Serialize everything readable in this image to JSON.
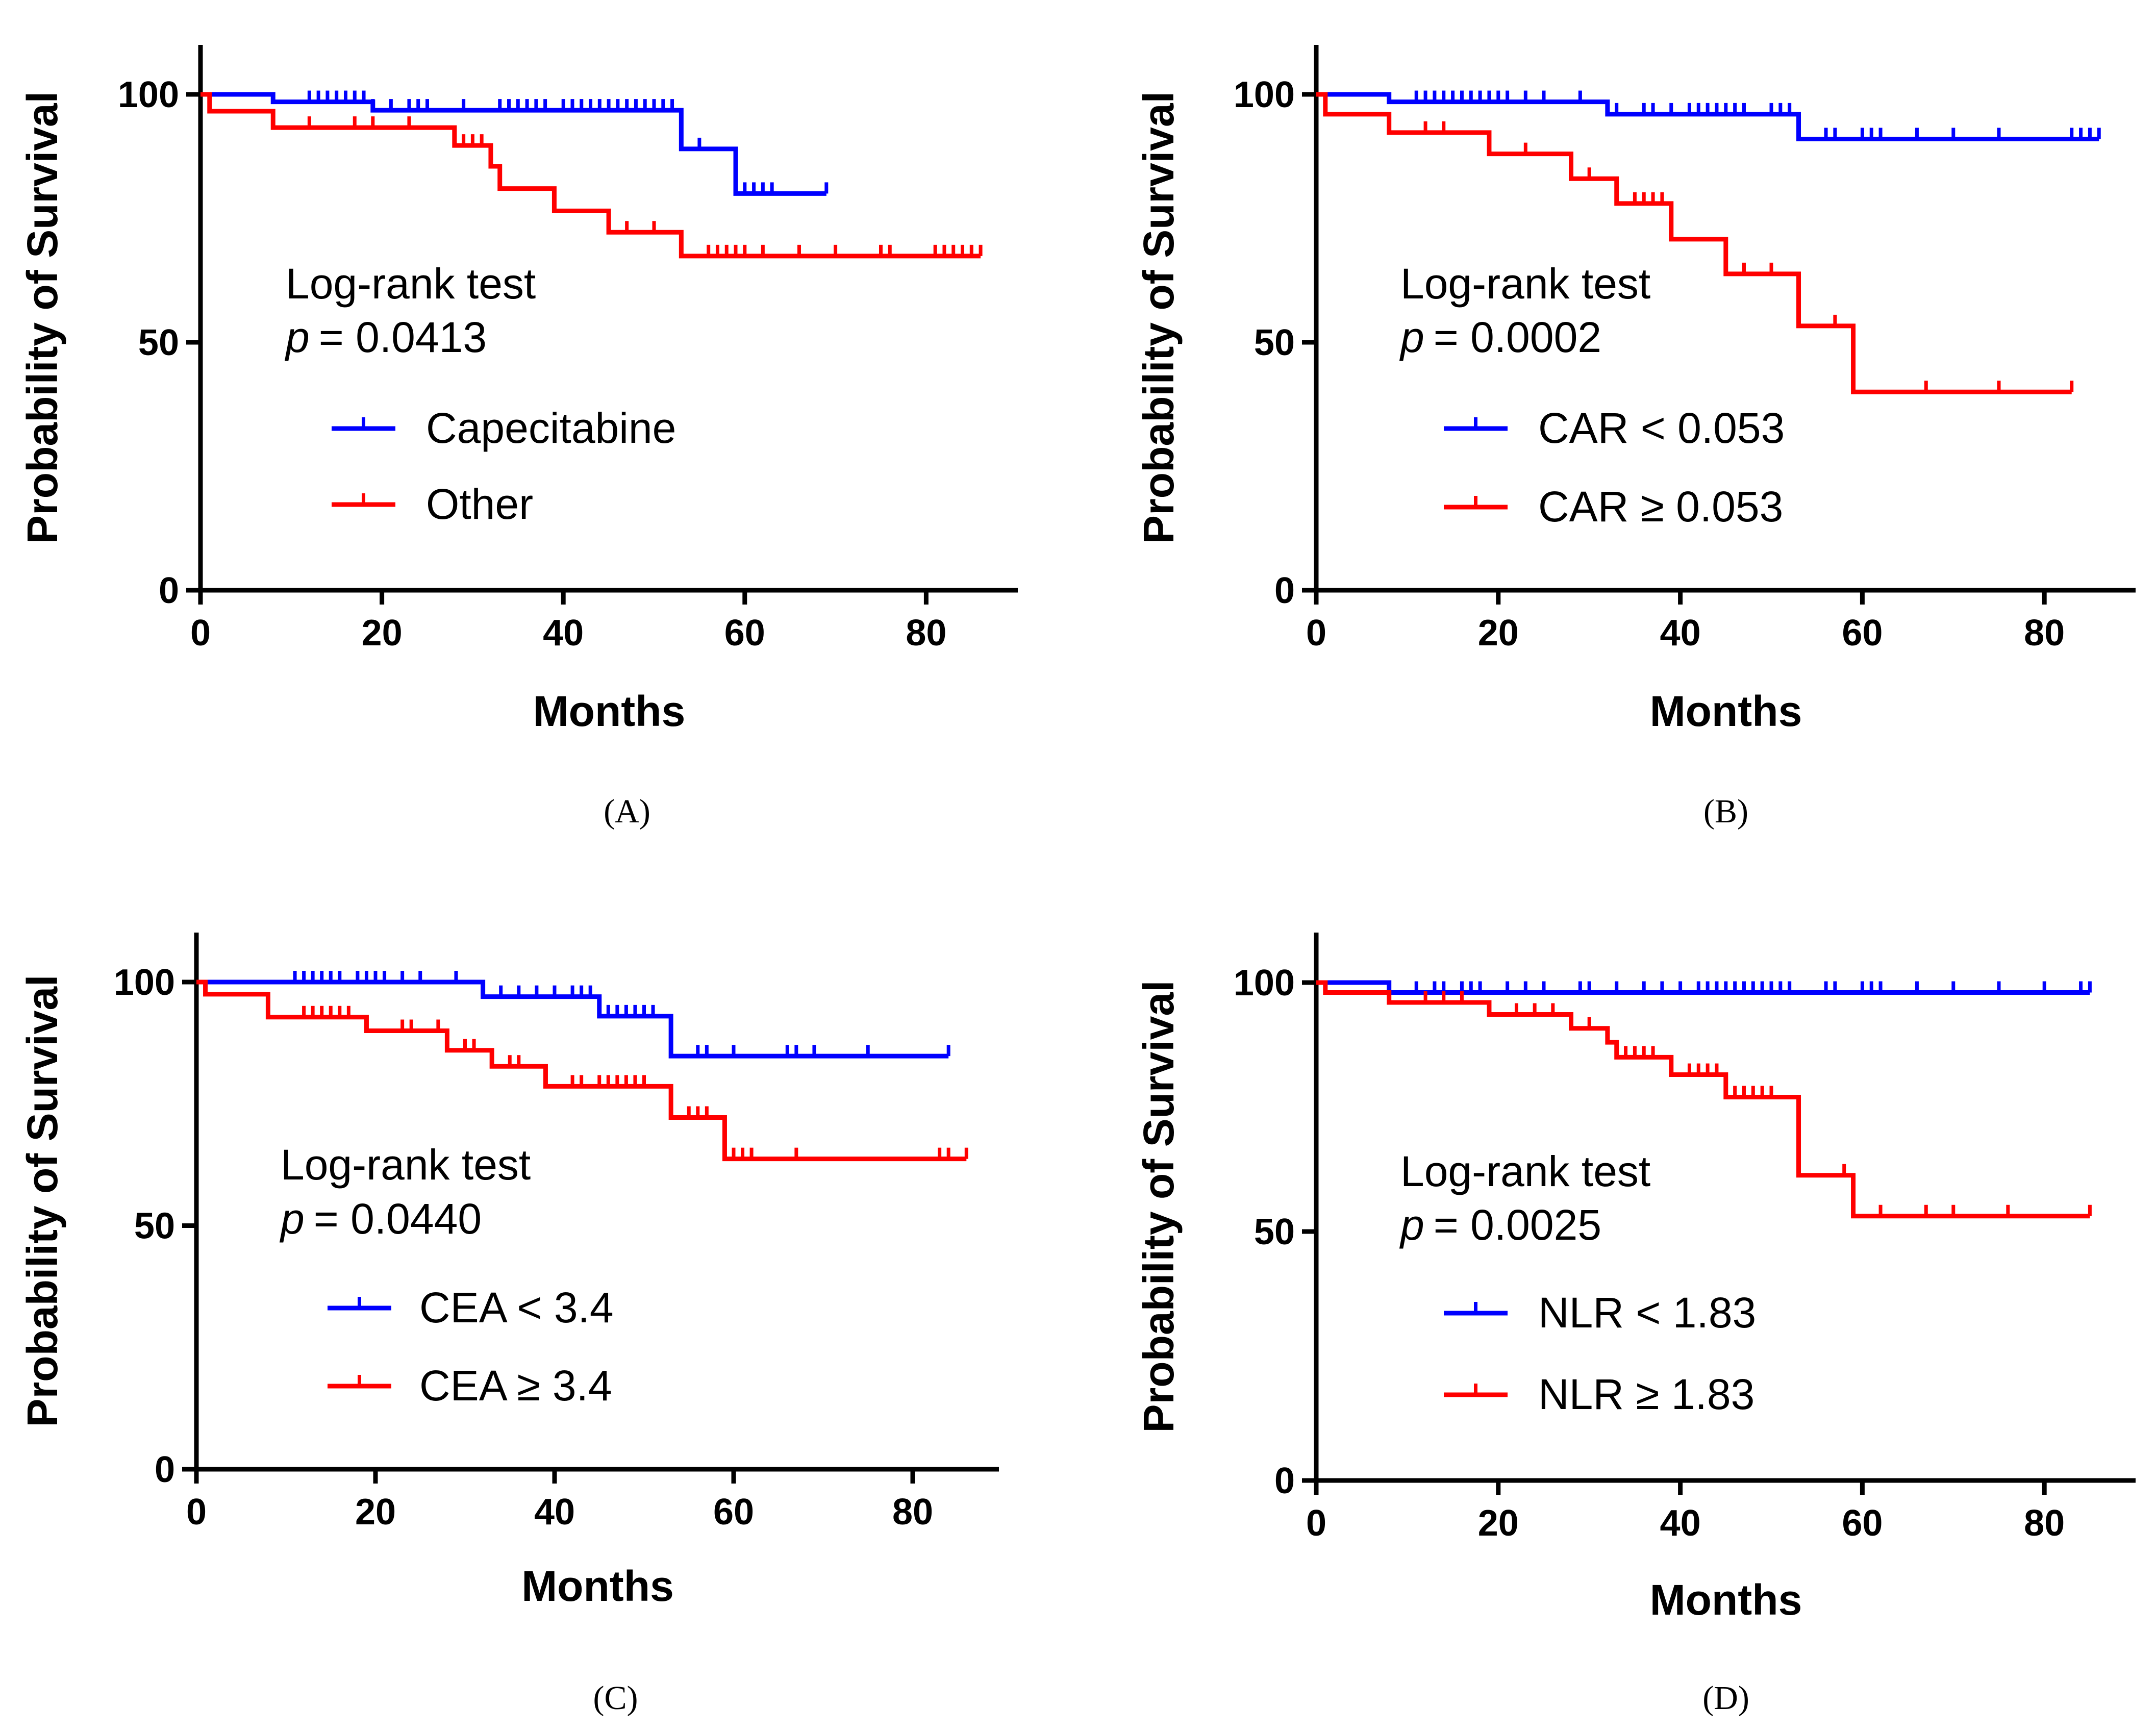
{
  "colors": {
    "blue": "#0000ff",
    "red": "#ff0000",
    "axis": "#000000"
  },
  "chart_data": [
    {
      "type": "line",
      "subtype": "kaplan-meier",
      "panel_label": "(A)",
      "xlabel": "Months",
      "ylabel": "Probability of Survival",
      "xlim": [
        0,
        90
      ],
      "ylim": [
        0,
        110
      ],
      "xticks": [
        "0",
        "20",
        "40",
        "60",
        "80"
      ],
      "yticks": [
        "0",
        "50",
        "100"
      ],
      "annotation_line1": "Log-rank test",
      "annotation_p_symbol": "p",
      "annotation_p_value": "= 0.0413",
      "series": [
        {
          "name": "Capecitabine",
          "color": "#0000ff",
          "steps": [
            [
              0,
              100
            ],
            [
              8,
              98.5
            ],
            [
              19,
              96.8
            ],
            [
              53,
              89
            ],
            [
              59,
              80
            ],
            [
              69,
              80
            ]
          ],
          "censored": [
            12,
            13,
            14,
            15,
            16,
            17,
            18,
            19,
            21,
            23,
            24,
            25,
            29,
            33,
            34,
            35,
            36,
            37,
            38,
            40,
            41,
            42,
            43,
            44,
            45,
            46,
            47,
            48,
            49,
            50,
            51,
            52,
            55,
            60,
            61,
            62,
            63,
            69
          ]
        },
        {
          "name": "Other",
          "color": "#ff0000",
          "steps": [
            [
              0,
              100
            ],
            [
              1,
              96.6
            ],
            [
              8,
              93.3
            ],
            [
              28,
              89.7
            ],
            [
              32,
              85.5
            ],
            [
              33,
              81
            ],
            [
              39,
              76.5
            ],
            [
              45,
              72.2
            ],
            [
              53,
              67.4
            ],
            [
              86,
              67.4
            ]
          ],
          "censored": [
            12,
            17,
            19,
            23,
            29,
            30,
            31,
            47,
            50,
            56,
            57,
            58,
            59,
            60,
            62,
            66,
            70,
            75,
            76,
            81,
            82,
            83,
            84,
            85,
            86
          ]
        }
      ]
    },
    {
      "type": "line",
      "subtype": "kaplan-meier",
      "panel_label": "(B)",
      "xlabel": "Months",
      "ylabel": "Probability of Survival",
      "xlim": [
        0,
        90
      ],
      "ylim": [
        0,
        110
      ],
      "xticks": [
        "0",
        "20",
        "40",
        "60",
        "80"
      ],
      "yticks": [
        "0",
        "50",
        "100"
      ],
      "annotation_line1": "Log-rank test",
      "annotation_p_symbol": "p",
      "annotation_p_value": "= 0.0002",
      "series": [
        {
          "name": "CAR < 0.053",
          "color": "#0000ff",
          "steps": [
            [
              0,
              100
            ],
            [
              8,
              98.5
            ],
            [
              32,
              96
            ],
            [
              53,
              91
            ],
            [
              86,
              91
            ]
          ],
          "censored": [
            11,
            12,
            13,
            14,
            15,
            16,
            17,
            18,
            19,
            20,
            21,
            23,
            25,
            29,
            33,
            36,
            37,
            39,
            41,
            42,
            43,
            44,
            45,
            46,
            47,
            50,
            51,
            52,
            56,
            57,
            60,
            61,
            62,
            66,
            70,
            75,
            83,
            84,
            85,
            86
          ]
        },
        {
          "name": "CAR ≥ 0.053",
          "color": "#ff0000",
          "steps": [
            [
              0,
              100
            ],
            [
              1,
              96
            ],
            [
              8,
              92.3
            ],
            [
              19,
              88
            ],
            [
              28,
              83
            ],
            [
              33,
              78
            ],
            [
              39,
              70.8
            ],
            [
              45,
              63.8
            ],
            [
              53,
              53.3
            ],
            [
              59,
              40
            ],
            [
              83,
              40
            ]
          ],
          "censored": [
            12,
            14,
            23,
            30,
            35,
            36,
            37,
            38,
            47,
            50,
            57,
            67,
            75,
            83
          ]
        }
      ]
    },
    {
      "type": "line",
      "subtype": "kaplan-meier",
      "panel_label": "(C)",
      "xlabel": "Months",
      "ylabel": "Probability of Survival",
      "xlim": [
        0,
        90
      ],
      "ylim": [
        0,
        110
      ],
      "xticks": [
        "0",
        "20",
        "40",
        "60",
        "80"
      ],
      "yticks": [
        "0",
        "50",
        "100"
      ],
      "annotation_line1": "Log-rank test",
      "annotation_p_symbol": "p",
      "annotation_p_value": "= 0.0440",
      "series": [
        {
          "name": "CEA < 3.4",
          "color": "#0000ff",
          "steps": [
            [
              0,
              100
            ],
            [
              32,
              97
            ],
            [
              45,
              93
            ],
            [
              53,
              84.8
            ],
            [
              84,
              84.8
            ]
          ],
          "censored": [
            11,
            12,
            13,
            14,
            15,
            16,
            18,
            19,
            20,
            21,
            23,
            25,
            29,
            34,
            36,
            38,
            40,
            42,
            43,
            44,
            46,
            47,
            48,
            49,
            50,
            51,
            56,
            57,
            60,
            66,
            67,
            69,
            75,
            84
          ]
        },
        {
          "name": "CEA ≥ 3.4",
          "color": "#ff0000",
          "steps": [
            [
              0,
              100
            ],
            [
              1,
              97.5
            ],
            [
              8,
              92.8
            ],
            [
              19,
              90
            ],
            [
              28,
              86
            ],
            [
              33,
              82.7
            ],
            [
              39,
              78.6
            ],
            [
              53,
              72.2
            ],
            [
              59,
              63.7
            ],
            [
              86,
              63.7
            ]
          ],
          "censored": [
            12,
            13,
            14,
            15,
            16,
            17,
            23,
            24,
            27,
            30,
            31,
            35,
            36,
            42,
            43,
            45,
            46,
            47,
            48,
            49,
            50,
            55,
            56,
            57,
            60,
            61,
            62,
            67,
            83,
            84,
            86
          ]
        }
      ]
    },
    {
      "type": "line",
      "subtype": "kaplan-meier",
      "panel_label": "(D)",
      "xlabel": "Months",
      "ylabel": "Probability of Survival",
      "xlim": [
        0,
        90
      ],
      "ylim": [
        0,
        110
      ],
      "xticks": [
        "0",
        "20",
        "40",
        "60",
        "80"
      ],
      "yticks": [
        "0",
        "50",
        "100"
      ],
      "annotation_line1": "Log-rank test",
      "annotation_p_symbol": "p",
      "annotation_p_value": "= 0.0025",
      "series": [
        {
          "name": "NLR < 1.83",
          "color": "#0000ff",
          "steps": [
            [
              0,
              100
            ],
            [
              8,
              98
            ],
            [
              85,
              98
            ]
          ],
          "censored": [
            11,
            13,
            14,
            16,
            17,
            18,
            21,
            23,
            25,
            29,
            30,
            33,
            36,
            38,
            40,
            42,
            43,
            44,
            45,
            46,
            47,
            48,
            49,
            50,
            51,
            52,
            56,
            57,
            60,
            61,
            62,
            66,
            70,
            75,
            80,
            84,
            85
          ]
        },
        {
          "name": "NLR ≥ 1.83",
          "color": "#ff0000",
          "steps": [
            [
              0,
              100
            ],
            [
              1,
              98
            ],
            [
              8,
              96
            ],
            [
              19,
              93.6
            ],
            [
              28,
              90.8
            ],
            [
              32,
              88
            ],
            [
              33,
              85
            ],
            [
              39,
              81.5
            ],
            [
              45,
              77
            ],
            [
              53,
              61.3
            ],
            [
              59,
              53.1
            ],
            [
              85,
              53.1
            ]
          ],
          "censored": [
            12,
            14,
            16,
            22,
            24,
            26,
            30,
            34,
            35,
            36,
            37,
            41,
            42,
            43,
            44,
            46,
            47,
            48,
            49,
            50,
            58,
            62,
            67,
            70,
            76,
            85
          ]
        }
      ]
    }
  ]
}
